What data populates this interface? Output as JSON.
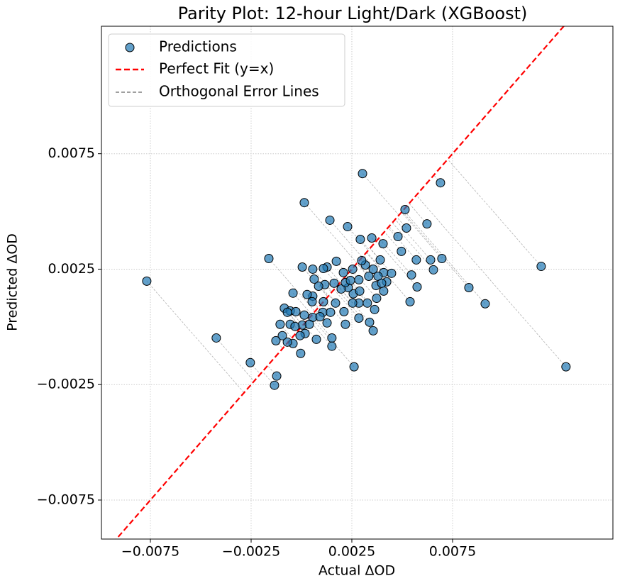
{
  "chart_data": {
    "type": "scatter",
    "title": "Parity Plot: 12-hour Light/Dark (XGBoost)",
    "x_label": "Actual ΔOD",
    "y_label": "Predicted ΔOD",
    "xlim": [
      -0.00993,
      0.01546
    ],
    "ylim": [
      -0.00919,
      0.01302
    ],
    "xticks": [
      {
        "value": -0.0075,
        "label": "−0.0075"
      },
      {
        "value": -0.0025,
        "label": "−0.0025"
      },
      0.0025,
      0.0075
    ],
    "yticks": [
      {
        "value": -0.0075,
        "label": "−0.0075"
      },
      {
        "value": -0.0025,
        "label": "−0.0025"
      },
      0.0025,
      0.0075
    ],
    "grid": true,
    "legend": "upper left",
    "series": [
      {
        "name": "Predictions",
        "color": "#1f77b4",
        "x": [
          4e-05,
          0.00056,
          0.00127,
          0.00173,
          0.00208,
          0.00254,
          0.00317,
          0.00356,
          0.00391,
          0.00408,
          0.00447,
          0.00423,
          0.00408,
          0.00373,
          0.00363,
          0.00327,
          0.00285,
          0.00257,
          0.00232,
          0.00197,
          0.00162,
          0.00116,
          0.00085,
          0.00056,
          0.00028,
          -0.00042,
          -0.00085,
          -0.00056,
          -0.00028,
          0.00014,
          0.00056,
          0.00106,
          0.00144,
          0.00169,
          0.00211,
          0.00254,
          0.00127,
          0.00151,
          0.00218,
          0.00285,
          0.00338,
          0.00356,
          0.00151,
          0.00074,
          0.00018,
          -7e-05,
          4e-05,
          -4e-05,
          -0.00042,
          -0.0007,
          -0.00095,
          -0.00056,
          -0.00106,
          -0.00127,
          -0.0007,
          -0.00032,
          0.00039,
          0.00092,
          0.00109,
          0.00218,
          0.00285,
          0.00334,
          0.0038,
          0.0037,
          0.00289,
          0.00299,
          0.00109,
          0.00063,
          0.00053,
          0.00243,
          0.00398,
          0.00405,
          0.00496,
          -0.00768,
          -0.00423,
          -0.00254,
          -0.00134,
          -0.00123,
          -0.00162,
          0.00014,
          0.00303,
          0.0069,
          0.0119,
          0.01313,
          0.00912,
          0.00831,
          0.00697,
          0.00641,
          0.00655,
          0.00623,
          0.00514,
          0.00521,
          0.0057,
          0.00546,
          0.00574,
          0.00539,
          0.00261,
          0.00141,
          0.00229,
          0.00349,
          0.00292,
          0.00479
        ],
        "values": [
          0.00259,
          0.0025,
          0.00259,
          0.00284,
          0.00235,
          0.0025,
          0.00268,
          0.0025,
          0.0029,
          0.00235,
          0.00232,
          0.00195,
          0.00155,
          0.00124,
          0.00075,
          0.00103,
          0.00103,
          0.00143,
          0.0017,
          0.00164,
          0.00189,
          0.00183,
          0.00176,
          0.00133,
          0.0014,
          0.00146,
          0.00081,
          0.00069,
          0.00066,
          0.00051,
          0.00041,
          0.00063,
          0.00063,
          0.00103,
          0.00066,
          0.00103,
          0.00017,
          -0.00048,
          0.00011,
          0.00038,
          0.0002,
          -0.00017,
          -0.00084,
          -0.00054,
          -0.00029,
          -0.00038,
          8e-05,
          -0.00115,
          -0.00072,
          -0.00066,
          -0.00038,
          0.00011,
          0.00011,
          -0.0006,
          0.00063,
          2e-05,
          0.00011,
          0.00044,
          0.00109,
          0.00192,
          0.00204,
          0.00219,
          0.00219,
          0.00179,
          0.00155,
          0.00287,
          0.00253,
          0.00207,
          0.00109,
          0.00201,
          0.00189,
          0.0036,
          0.00327,
          0.00198,
          -0.00048,
          -0.00155,
          -0.00253,
          -0.00213,
          0.00296,
          0.00538,
          0.00664,
          0.00624,
          0.00262,
          -0.00173,
          0.001,
          0.0017,
          0.00296,
          0.0029,
          0.00247,
          0.00446,
          0.00508,
          0.00428,
          0.0029,
          0.00225,
          0.00173,
          0.00109,
          -0.00173,
          0.00462,
          0.00434,
          0.00385,
          0.00379,
          0.00391
        ]
      }
    ],
    "reference_line": {
      "name": "Perfect Fit (y=x)",
      "color": "#ff0000"
    },
    "error_lines": {
      "name": "Orthogonal Error Lines",
      "color": "#808080"
    }
  }
}
